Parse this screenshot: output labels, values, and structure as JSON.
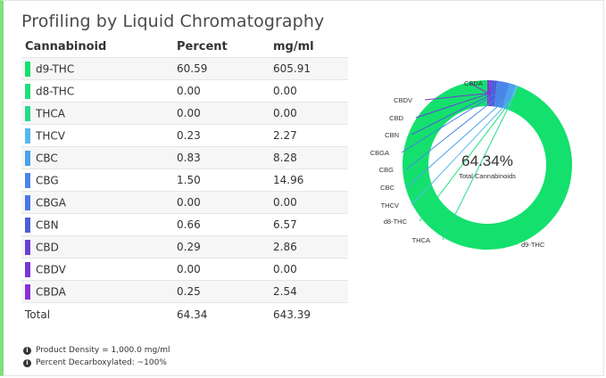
{
  "title": "Profiling by Liquid Chromatography",
  "table": {
    "headers": [
      "Cannabinoid",
      "Percent",
      "mg/ml"
    ],
    "rows": [
      {
        "name": "d9-THC",
        "percent": "60.59",
        "mgml": "605.91",
        "color": "#14e06e"
      },
      {
        "name": "d8-THC",
        "percent": "0.00",
        "mgml": "0.00",
        "color": "#1de07a"
      },
      {
        "name": "THCA",
        "percent": "0.00",
        "mgml": "0.00",
        "color": "#22dc88"
      },
      {
        "name": "THCV",
        "percent": "0.23",
        "mgml": "2.27",
        "color": "#55b8f0"
      },
      {
        "name": "CBC",
        "percent": "0.83",
        "mgml": "8.28",
        "color": "#4aa2ec"
      },
      {
        "name": "CBG",
        "percent": "1.50",
        "mgml": "14.96",
        "color": "#4a86e8"
      },
      {
        "name": "CBGA",
        "percent": "0.00",
        "mgml": "0.00",
        "color": "#4a78e4"
      },
      {
        "name": "CBN",
        "percent": "0.66",
        "mgml": "6.57",
        "color": "#4d5fd8"
      },
      {
        "name": "CBD",
        "percent": "0.29",
        "mgml": "2.86",
        "color": "#6a3fd4"
      },
      {
        "name": "CBDV",
        "percent": "0.00",
        "mgml": "0.00",
        "color": "#7a35d2"
      },
      {
        "name": "CBDA",
        "percent": "0.25",
        "mgml": "2.54",
        "color": "#8a2fd6"
      }
    ],
    "total": {
      "label": "Total",
      "percent": "64.34",
      "mgml": "643.39"
    }
  },
  "notes": {
    "density": "Product Density = 1,000.0 mg/ml",
    "decarb": "Percent Decarboxylated: ~100%"
  },
  "chart_data": {
    "type": "pie",
    "center_value": "64.34%",
    "center_label": "Total Cannabinoids",
    "slices": [
      {
        "label": "d9-THC",
        "value": 60.59,
        "color": "#14e06e"
      },
      {
        "label": "d8-THC",
        "value": 0.0,
        "color": "#1de07a"
      },
      {
        "label": "THCA",
        "value": 0.0,
        "color": "#22dc88"
      },
      {
        "label": "THCV",
        "value": 0.23,
        "color": "#55b8f0"
      },
      {
        "label": "CBC",
        "value": 0.83,
        "color": "#4aa2ec"
      },
      {
        "label": "CBG",
        "value": 1.5,
        "color": "#4a86e8"
      },
      {
        "label": "CBGA",
        "value": 0.0,
        "color": "#4a78e4"
      },
      {
        "label": "CBN",
        "value": 0.66,
        "color": "#4d5fd8"
      },
      {
        "label": "CBD",
        "value": 0.29,
        "color": "#6a3fd4"
      },
      {
        "label": "CBDV",
        "value": 0.0,
        "color": "#7a35d2"
      },
      {
        "label": "CBDA",
        "value": 0.25,
        "color": "#8a2fd6"
      }
    ]
  }
}
